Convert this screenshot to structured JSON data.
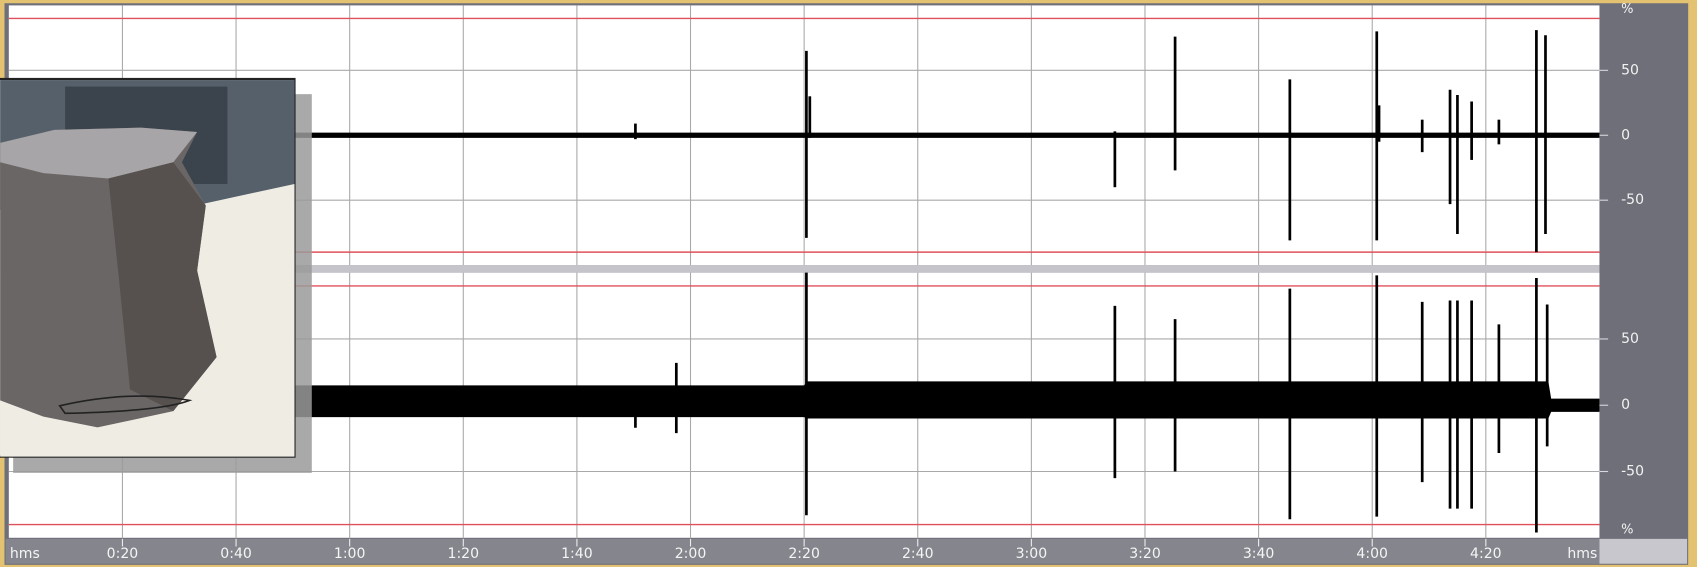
{
  "chart_data": [
    {
      "type": "waveform",
      "xlim": [
        0,
        280
      ],
      "ylim": [
        -100,
        100
      ],
      "yticks": [
        -50,
        0,
        50
      ],
      "unit_label": "%",
      "clip_lines": [
        -90,
        90
      ],
      "clip_color": "#e0505a",
      "grid": true,
      "xticks": [
        {
          "value": 20,
          "label": "0:20"
        },
        {
          "value": 40,
          "label": "0:40"
        },
        {
          "value": 60,
          "label": "1:00"
        },
        {
          "value": 80,
          "label": "1:20"
        },
        {
          "value": 100,
          "label": "1:40"
        },
        {
          "value": 120,
          "label": "2:00"
        },
        {
          "value": 140,
          "label": "2:20"
        },
        {
          "value": 160,
          "label": "2:40"
        },
        {
          "value": 180,
          "label": "3:00"
        },
        {
          "value": 200,
          "label": "3:20"
        },
        {
          "value": 220,
          "label": "3:40"
        },
        {
          "value": 240,
          "label": "4:00"
        },
        {
          "value": 260,
          "label": "4:20"
        }
      ],
      "noise": {
        "x": [
          0,
          280
        ],
        "upper": [
          2,
          2
        ],
        "lower": [
          -2,
          -2
        ]
      },
      "spikes": {
        "x": [
          110.3,
          140.4,
          141,
          194.7,
          205.3,
          225.5,
          240.8,
          241.2,
          248.8,
          253.7,
          255,
          257.5,
          262.3,
          268.9,
          270.5
        ],
        "max": [
          9,
          65,
          30,
          3,
          76,
          43,
          80,
          23,
          12,
          35,
          31,
          26,
          12,
          81,
          77
        ],
        "min": [
          -3,
          -79,
          -2,
          -40,
          -27,
          -81,
          -81,
          -5,
          -13,
          -53,
          -76,
          -19,
          -7,
          -90,
          -76
        ]
      }
    },
    {
      "type": "waveform",
      "xlim": [
        0,
        280
      ],
      "ylim": [
        -100,
        100
      ],
      "yticks": [
        -50,
        0,
        50
      ],
      "unit_label": "%",
      "clip_lines": [
        -90,
        90
      ],
      "clip_color": "#e0505a",
      "grid": true,
      "x_label": "hms",
      "xticks": [
        {
          "value": 20,
          "label": "0:20"
        },
        {
          "value": 40,
          "label": "0:40"
        },
        {
          "value": 60,
          "label": "1:00"
        },
        {
          "value": 80,
          "label": "1:20"
        },
        {
          "value": 100,
          "label": "1:40"
        },
        {
          "value": 120,
          "label": "2:00"
        },
        {
          "value": 140,
          "label": "2:20"
        },
        {
          "value": 160,
          "label": "2:40"
        },
        {
          "value": 180,
          "label": "3:00"
        },
        {
          "value": 200,
          "label": "3:20"
        },
        {
          "value": 220,
          "label": "3:40"
        },
        {
          "value": 240,
          "label": "4:00"
        },
        {
          "value": 260,
          "label": "4:20"
        }
      ],
      "noise": {
        "x": [
          0,
          140,
          140.5,
          271,
          271.5,
          280
        ],
        "upper": [
          15,
          15,
          18,
          18,
          5,
          5
        ],
        "lower": [
          -9,
          -9,
          -10,
          -10,
          -5,
          -5
        ]
      },
      "spikes": {
        "x": [
          110.3,
          117.5,
          140.4,
          194.7,
          205.3,
          225.5,
          240.8,
          248.8,
          253.7,
          255,
          257.5,
          262.3,
          268.9,
          270.8
        ],
        "max": [
          11,
          32,
          100,
          75,
          65,
          88,
          98,
          78,
          79,
          79,
          79,
          61,
          96,
          76
        ],
        "min": [
          -17,
          -21,
          -83,
          -55,
          -50,
          -86,
          -84,
          -58,
          -78,
          -78,
          -78,
          -36,
          -96,
          -31
        ]
      }
    }
  ]
}
